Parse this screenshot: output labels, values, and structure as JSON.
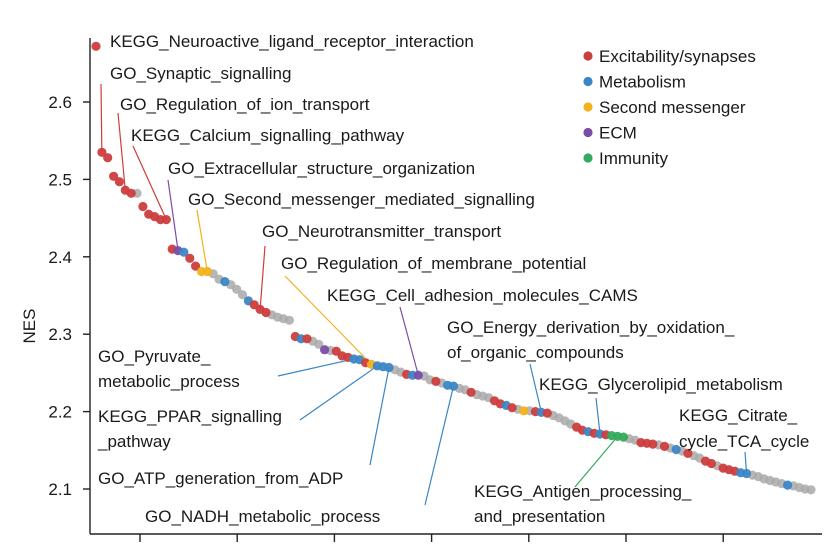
{
  "chart_data": {
    "type": "scatter",
    "title": "",
    "xlabel": "",
    "ylabel": "NES",
    "ylim": [
      2.075,
      2.69
    ],
    "yticks": [
      2.1,
      2.2,
      2.3,
      2.4,
      2.5,
      2.6
    ],
    "xticks_count": 7,
    "grid": false,
    "legend_position": "top-right",
    "categories": [
      {
        "key": "excit",
        "name": "Excitability/synapses",
        "color": "#cc3d3d"
      },
      {
        "key": "metab",
        "name": "Metabolism",
        "color": "#3b86c6"
      },
      {
        "key": "second",
        "name": "Second messenger",
        "color": "#f2b21b"
      },
      {
        "key": "ecm",
        "name": "ECM",
        "color": "#7b4ea6"
      },
      {
        "key": "immun",
        "name": "Immunity",
        "color": "#33aa5e"
      },
      {
        "key": "other",
        "name": "",
        "color": "#a9a9a9"
      }
    ],
    "points": [
      [
        1,
        2.672,
        "excit"
      ],
      [
        2,
        2.535,
        "excit"
      ],
      [
        3,
        2.528,
        "excit"
      ],
      [
        4,
        2.504,
        "excit"
      ],
      [
        5,
        2.497,
        "excit"
      ],
      [
        6,
        2.486,
        "excit"
      ],
      [
        7,
        2.482,
        "excit"
      ],
      [
        8,
        2.482,
        "other"
      ],
      [
        9,
        2.465,
        "excit"
      ],
      [
        10,
        2.455,
        "excit"
      ],
      [
        11,
        2.452,
        "excit"
      ],
      [
        12,
        2.448,
        "excit"
      ],
      [
        13,
        2.448,
        "excit"
      ],
      [
        14,
        2.41,
        "excit"
      ],
      [
        15,
        2.408,
        "ecm"
      ],
      [
        16,
        2.406,
        "metab"
      ],
      [
        17,
        2.398,
        "excit"
      ],
      [
        18,
        2.388,
        "excit"
      ],
      [
        19,
        2.381,
        "second"
      ],
      [
        20,
        2.381,
        "second"
      ],
      [
        21,
        2.378,
        "other"
      ],
      [
        22,
        2.371,
        "other"
      ],
      [
        23,
        2.368,
        "metab"
      ],
      [
        24,
        2.364,
        "other"
      ],
      [
        25,
        2.358,
        "other"
      ],
      [
        26,
        2.351,
        "other"
      ],
      [
        27,
        2.343,
        "metab"
      ],
      [
        28,
        2.338,
        "excit"
      ],
      [
        29,
        2.332,
        "excit"
      ],
      [
        30,
        2.328,
        "excit"
      ],
      [
        31,
        2.325,
        "other"
      ],
      [
        32,
        2.322,
        "other"
      ],
      [
        33,
        2.32,
        "other"
      ],
      [
        34,
        2.318,
        "other"
      ],
      [
        35,
        2.297,
        "excit"
      ],
      [
        36,
        2.294,
        "metab"
      ],
      [
        37,
        2.294,
        "excit"
      ],
      [
        38,
        2.291,
        "other"
      ],
      [
        39,
        2.287,
        "other"
      ],
      [
        40,
        2.28,
        "ecm"
      ],
      [
        41,
        2.279,
        "other"
      ],
      [
        42,
        2.278,
        "excit"
      ],
      [
        43,
        2.272,
        "excit"
      ],
      [
        44,
        2.27,
        "excit"
      ],
      [
        45,
        2.268,
        "metab"
      ],
      [
        46,
        2.267,
        "metab"
      ],
      [
        47,
        2.263,
        "excit"
      ],
      [
        48,
        2.261,
        "second"
      ],
      [
        49,
        2.259,
        "metab"
      ],
      [
        50,
        2.258,
        "metab"
      ],
      [
        51,
        2.257,
        "metab"
      ],
      [
        52,
        2.254,
        "other"
      ],
      [
        53,
        2.251,
        "other"
      ],
      [
        54,
        2.248,
        "excit"
      ],
      [
        55,
        2.247,
        "metab"
      ],
      [
        56,
        2.247,
        "ecm"
      ],
      [
        57,
        2.246,
        "other"
      ],
      [
        58,
        2.241,
        "other"
      ],
      [
        59,
        2.239,
        "excit"
      ],
      [
        60,
        2.237,
        "other"
      ],
      [
        61,
        2.234,
        "metab"
      ],
      [
        62,
        2.233,
        "metab"
      ],
      [
        63,
        2.23,
        "other"
      ],
      [
        64,
        2.228,
        "other"
      ],
      [
        65,
        2.225,
        "excit"
      ],
      [
        66,
        2.222,
        "other"
      ],
      [
        67,
        2.22,
        "other"
      ],
      [
        68,
        2.218,
        "other"
      ],
      [
        69,
        2.214,
        "excit"
      ],
      [
        70,
        2.21,
        "excit"
      ],
      [
        71,
        2.208,
        "metab"
      ],
      [
        72,
        2.205,
        "excit"
      ],
      [
        73,
        2.203,
        "other"
      ],
      [
        74,
        2.201,
        "second"
      ],
      [
        75,
        2.201,
        "other"
      ],
      [
        76,
        2.2,
        "excit"
      ],
      [
        77,
        2.199,
        "metab"
      ],
      [
        78,
        2.198,
        "excit"
      ],
      [
        79,
        2.195,
        "other"
      ],
      [
        80,
        2.192,
        "other"
      ],
      [
        81,
        2.188,
        "other"
      ],
      [
        82,
        2.184,
        "other"
      ],
      [
        83,
        2.18,
        "excit"
      ],
      [
        84,
        2.176,
        "excit"
      ],
      [
        85,
        2.174,
        "metab"
      ],
      [
        86,
        2.172,
        "excit"
      ],
      [
        87,
        2.171,
        "metab"
      ],
      [
        88,
        2.17,
        "excit"
      ],
      [
        89,
        2.169,
        "immun"
      ],
      [
        90,
        2.168,
        "immun"
      ],
      [
        91,
        2.167,
        "immun"
      ],
      [
        92,
        2.165,
        "other"
      ],
      [
        93,
        2.163,
        "other"
      ],
      [
        94,
        2.16,
        "excit"
      ],
      [
        95,
        2.159,
        "excit"
      ],
      [
        96,
        2.158,
        "excit"
      ],
      [
        97,
        2.157,
        "other"
      ],
      [
        98,
        2.155,
        "excit"
      ],
      [
        99,
        2.153,
        "other"
      ],
      [
        100,
        2.151,
        "metab"
      ],
      [
        101,
        2.149,
        "other"
      ],
      [
        102,
        2.146,
        "excit"
      ],
      [
        103,
        2.143,
        "other"
      ],
      [
        104,
        2.14,
        "other"
      ],
      [
        105,
        2.136,
        "excit"
      ],
      [
        106,
        2.133,
        "excit"
      ],
      [
        107,
        2.13,
        "other"
      ],
      [
        108,
        2.127,
        "excit"
      ],
      [
        109,
        2.125,
        "excit"
      ],
      [
        110,
        2.123,
        "excit"
      ],
      [
        111,
        2.121,
        "metab"
      ],
      [
        112,
        2.12,
        "metab"
      ],
      [
        113,
        2.118,
        "other"
      ],
      [
        114,
        2.116,
        "other"
      ],
      [
        115,
        2.113,
        "other"
      ],
      [
        116,
        2.111,
        "other"
      ],
      [
        117,
        2.109,
        "other"
      ],
      [
        118,
        2.107,
        "other"
      ],
      [
        119,
        2.105,
        "metab"
      ],
      [
        120,
        2.104,
        "other"
      ],
      [
        121,
        2.102,
        "other"
      ],
      [
        122,
        2.1,
        "other"
      ],
      [
        123,
        2.099,
        "other"
      ]
    ],
    "annotations": [
      {
        "text": "KEGG_Neuroactive_ligand_receptor_interaction",
        "point": 1
      },
      {
        "text": "GO_Synaptic_signalling",
        "point": 2
      },
      {
        "text": "GO_Regulation_of_ion_transport",
        "point": 6
      },
      {
        "text": "KEGG_Calcium_signalling_pathway",
        "point": 13
      },
      {
        "text": "GO_Extracellular_structure_organization",
        "point": 15
      },
      {
        "text": "GO_Second_messenger_mediated_signalling",
        "point": 20
      },
      {
        "text": "GO_Neurotransmitter_transport",
        "point": 29
      },
      {
        "text": "GO_Regulation_of_membrane_potential",
        "point": 48
      },
      {
        "text": "KEGG_Cell_adhesion_molecules_CAMS",
        "point": 56
      },
      {
        "text": "GO_Energy_derivation_by_oxidation_ of_organic_compounds",
        "point": 77
      },
      {
        "text": "KEGG_Glycerolipid_metabolism",
        "point": 87
      },
      {
        "text": "KEGG_Citrate_ cycle_TCA_cycle",
        "point": 112
      },
      {
        "text": "KEGG_Antigen_processing_ and_presentation",
        "point": 90
      },
      {
        "text": "GO_Pyruvate_ metabolic_process",
        "point": 45
      },
      {
        "text": "KEGG_PPAR_signalling _pathway",
        "point": 49
      },
      {
        "text": "GO_ATP_generation_from_ADP",
        "point": 51
      },
      {
        "text": "GO_NADH_metabolic_process",
        "point": 62
      }
    ]
  }
}
